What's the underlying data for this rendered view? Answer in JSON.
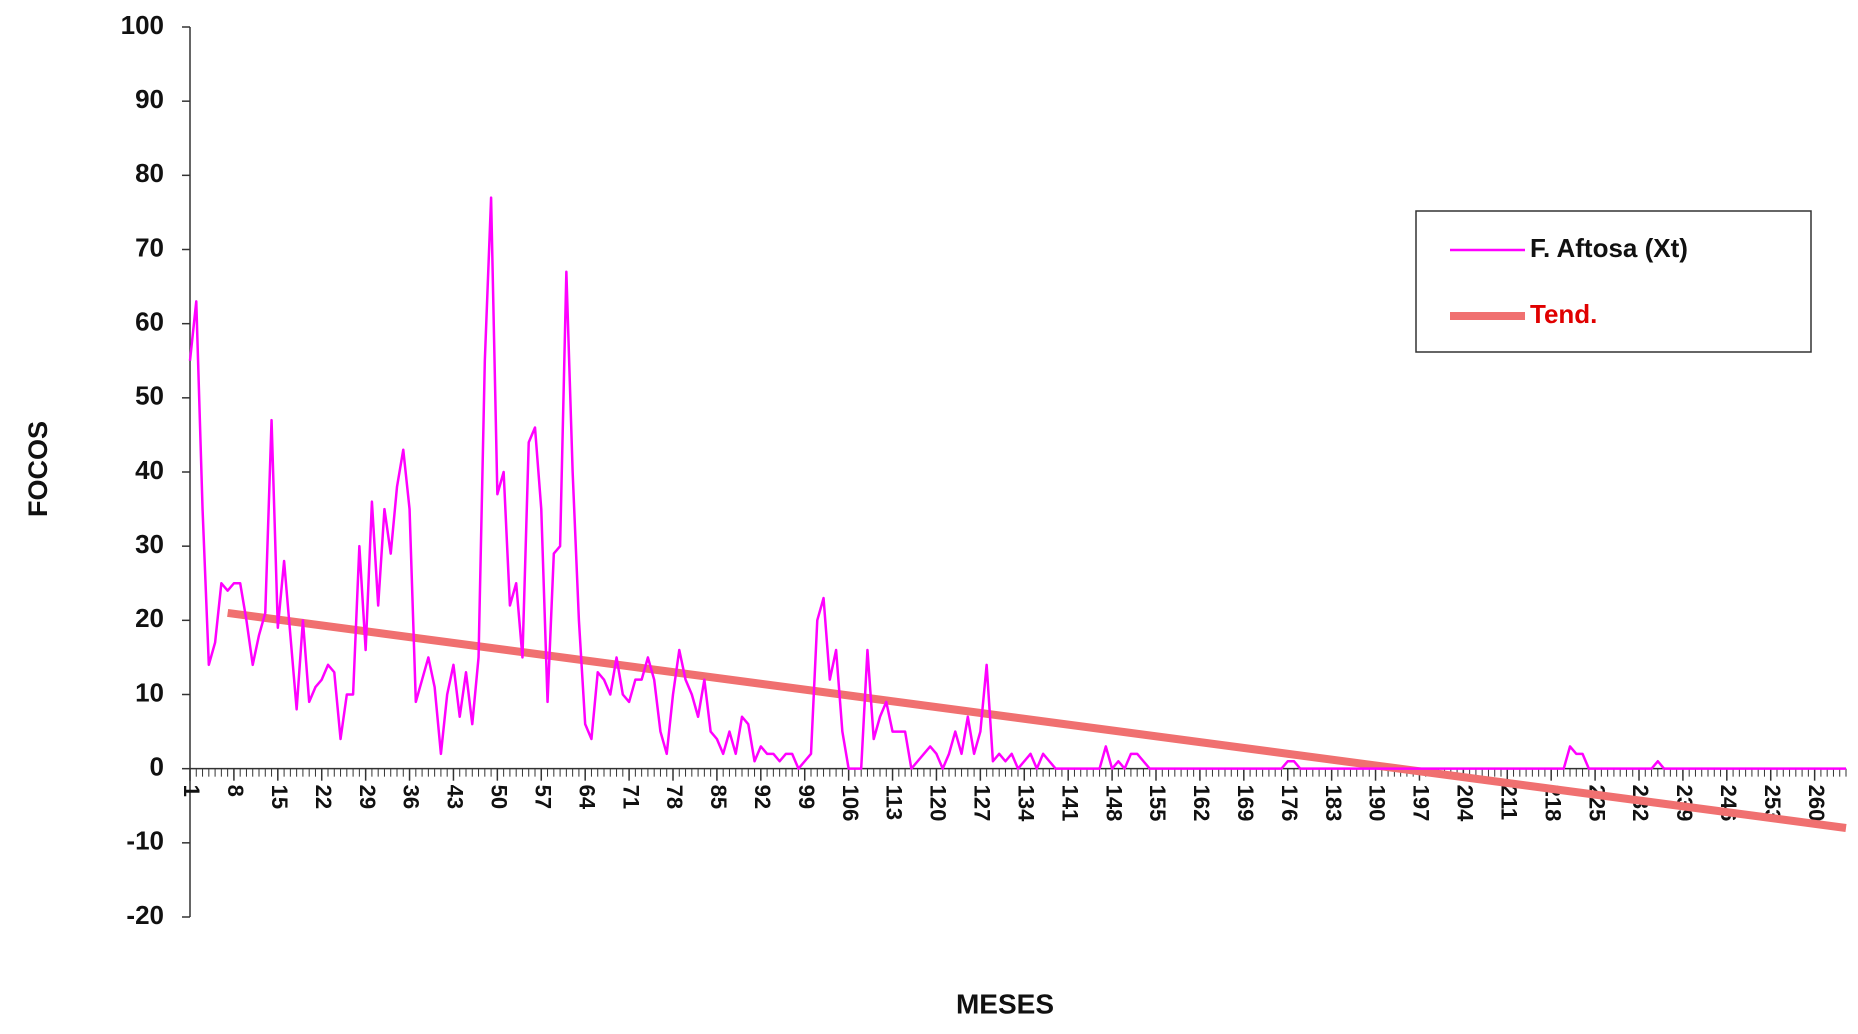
{
  "chart_data": {
    "type": "line",
    "x_label": "MESES",
    "y_label": "FOCOS",
    "x": [
      1,
      2,
      3,
      4,
      5,
      6,
      7,
      8,
      9,
      10,
      11,
      12,
      13,
      14,
      15,
      16,
      17,
      18,
      19,
      20,
      21,
      22,
      23,
      24,
      25,
      26,
      27,
      28,
      29,
      30,
      31,
      32,
      33,
      34,
      35,
      36,
      37,
      38,
      39,
      40,
      41,
      42,
      43,
      44,
      45,
      46,
      47,
      48,
      49,
      50,
      51,
      52,
      53,
      54,
      55,
      56,
      57,
      58,
      59,
      60,
      61,
      62,
      63,
      64,
      65,
      66,
      67,
      68,
      69,
      70,
      71,
      72,
      73,
      74,
      75,
      76,
      77,
      78,
      79,
      80,
      81,
      82,
      83,
      84,
      85,
      86,
      87,
      88,
      89,
      90,
      91,
      92,
      93,
      94,
      95,
      96,
      97,
      98,
      99,
      100,
      101,
      102,
      103,
      104,
      105,
      106,
      107,
      108,
      109,
      110,
      111,
      112,
      113,
      114,
      115,
      116,
      117,
      118,
      119,
      120,
      121,
      122,
      123,
      124,
      125,
      126,
      127,
      128,
      129,
      130,
      131,
      132,
      133,
      134,
      135,
      136,
      137,
      138,
      139,
      140,
      141,
      142,
      143,
      144,
      145,
      146,
      147,
      148,
      149,
      150,
      151,
      152,
      153,
      154,
      155,
      156,
      157,
      158,
      159,
      160,
      161,
      162,
      163,
      164,
      165,
      166,
      167,
      168,
      169,
      170,
      171,
      172,
      173,
      174,
      175,
      176,
      177,
      178,
      179,
      180,
      181,
      182,
      183,
      184,
      185,
      186,
      187,
      188,
      189,
      190,
      191,
      192,
      193,
      194,
      195,
      196,
      197,
      198,
      199,
      200,
      201,
      202,
      203,
      204,
      205,
      206,
      207,
      208,
      209,
      210,
      211,
      212,
      213,
      214,
      215,
      216,
      217,
      218,
      219,
      220,
      221,
      222,
      223,
      224,
      225,
      226,
      227,
      228,
      229,
      230,
      231,
      232,
      233,
      234,
      235,
      236,
      237,
      238,
      239,
      240,
      241,
      242,
      243,
      244,
      245,
      246,
      247,
      248,
      249,
      250,
      251,
      252,
      253,
      254,
      255,
      256,
      257,
      258,
      259,
      260,
      261,
      262,
      263,
      264,
      265
    ],
    "series": [
      {
        "name": "F. Aftosa (Xt)",
        "color": "#ff00ff",
        "values": [
          55,
          63,
          35,
          14,
          17,
          25,
          24,
          25,
          25,
          20,
          14,
          18,
          21,
          47,
          19,
          28,
          18,
          8,
          20,
          9,
          11,
          12,
          14,
          13,
          4,
          10,
          10,
          30,
          16,
          36,
          22,
          35,
          29,
          38,
          43,
          35,
          9,
          12,
          15,
          11,
          2,
          10,
          14,
          7,
          13,
          6,
          15,
          55,
          77,
          37,
          40,
          22,
          25,
          15,
          44,
          46,
          35,
          9,
          29,
          30,
          67,
          40,
          20,
          6,
          4,
          13,
          12,
          10,
          15,
          10,
          9,
          12,
          12,
          15,
          12,
          5,
          2,
          10,
          16,
          12,
          10,
          7,
          12,
          5,
          4,
          2,
          5,
          2,
          7,
          6,
          1,
          3,
          2,
          2,
          1,
          2,
          2,
          0,
          1,
          2,
          20,
          23,
          12,
          16,
          5,
          0,
          0,
          0,
          16,
          4,
          7,
          9,
          5,
          5,
          5,
          0,
          1,
          2,
          3,
          2,
          0,
          2,
          5,
          2,
          7,
          2,
          5,
          14,
          1,
          2,
          1,
          2,
          0,
          1,
          2,
          0,
          2,
          1,
          0,
          0,
          0,
          0,
          0,
          0,
          0,
          0,
          3,
          0,
          1,
          0,
          2,
          2,
          1,
          0,
          0,
          0,
          0,
          0,
          0,
          0,
          0,
          0,
          0,
          0,
          0,
          0,
          0,
          0,
          0,
          0,
          0,
          0,
          0,
          0,
          0,
          1,
          1,
          0,
          0,
          0,
          0,
          0,
          0,
          0,
          0,
          0,
          0,
          0,
          0,
          0,
          0,
          0,
          0,
          0,
          0,
          0,
          0,
          0,
          0,
          0,
          0,
          0,
          0,
          0,
          0,
          0,
          0,
          0,
          0,
          0,
          0,
          0,
          0,
          0,
          0,
          0,
          0,
          0,
          0,
          0,
          3,
          2,
          2,
          0,
          0,
          0,
          0,
          0,
          0,
          0,
          0,
          0,
          0,
          0,
          1,
          0,
          0,
          0,
          0,
          0,
          0,
          0,
          0,
          0,
          0,
          0,
          0,
          0,
          0,
          0,
          0,
          0,
          0,
          0,
          0,
          0,
          0,
          0,
          0,
          0,
          0,
          0,
          0,
          0,
          0
        ]
      },
      {
        "name": "Tend.",
        "color": "#f07070",
        "x": [
          7,
          265
        ],
        "values": [
          21,
          -8
        ]
      }
    ],
    "xlim": [
      1,
      265
    ],
    "xticks": [
      1,
      8,
      15,
      22,
      29,
      36,
      43,
      50,
      57,
      64,
      71,
      78,
      85,
      92,
      99,
      106,
      113,
      120,
      127,
      134,
      141,
      148,
      155,
      162,
      169,
      176,
      183,
      190,
      197,
      204,
      211,
      218,
      225,
      232,
      239,
      246,
      253,
      260
    ],
    "ylim": [
      -20,
      100
    ],
    "yticks": [
      -20,
      -10,
      0,
      10,
      20,
      30,
      40,
      50,
      60,
      70,
      80,
      90,
      100
    ],
    "legend": "upper right"
  }
}
